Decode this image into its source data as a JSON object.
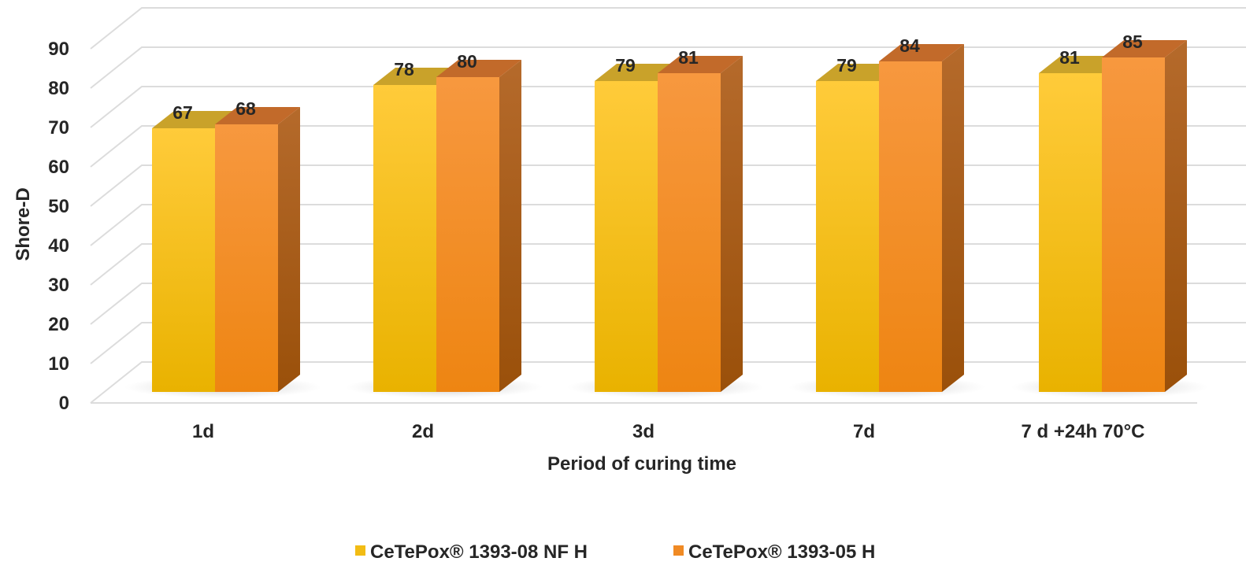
{
  "chart_data": {
    "type": "bar",
    "categories": [
      "1d",
      "2d",
      "3d",
      "7d",
      "7 d +24h 70°C"
    ],
    "series": [
      {
        "name": "CeTePox® 1393-08 NF H",
        "values": [
          67,
          78,
          79,
          79,
          81
        ]
      },
      {
        "name": "CeTePox® 1393-05 H",
        "values": [
          68,
          80,
          81,
          84,
          85
        ]
      }
    ],
    "xlabel": "Period of curing time",
    "ylabel": "Shore-D",
    "ylim": [
      0,
      90
    ],
    "yticks": [
      "0",
      "10",
      "20",
      "30",
      "40",
      "50",
      "60",
      "70",
      "80",
      "90"
    ],
    "grid": true,
    "legend_position": "bottom",
    "colors": {
      "series1_light": "#ffcb3a",
      "series1_dark": "#e9b200",
      "series1_top": "#c9a22a",
      "series1_side": "#a88400",
      "series2_light": "#f7983f",
      "series2_dark": "#ee8512",
      "series2_top": "#c26a2a",
      "series2_side": "#a45a10",
      "grid": "#dcdcdc",
      "text": "#262626"
    }
  }
}
